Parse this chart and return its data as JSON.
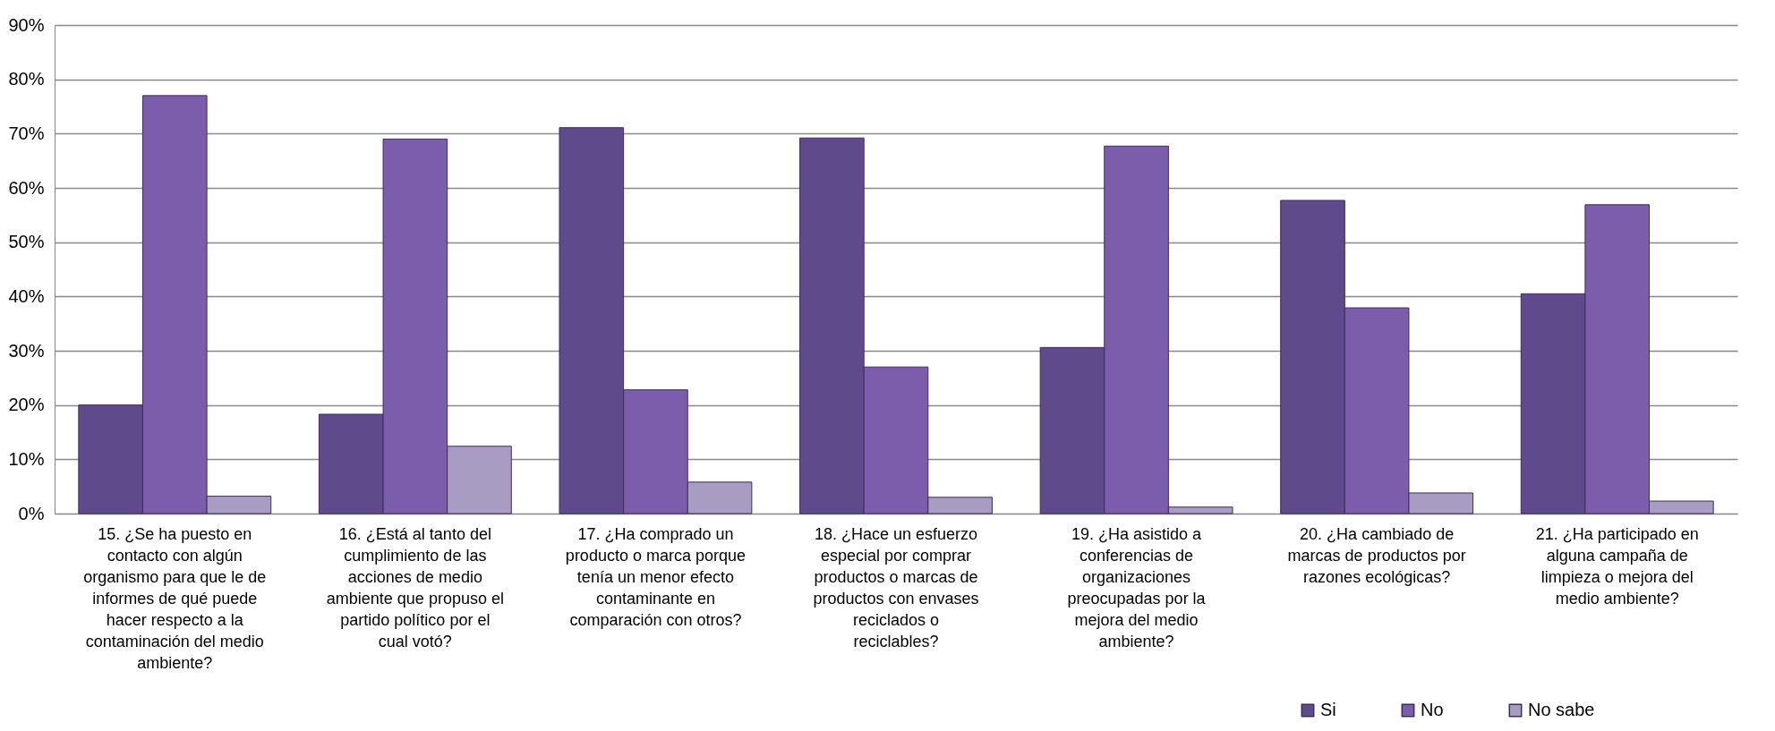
{
  "chart_data": {
    "type": "bar",
    "categories": [
      "15. ¿Se ha puesto en contacto con algún organismo para que le de informes de qué puede hacer respecto a la contaminación del medio ambiente?",
      "16. ¿Está al tanto del cumplimiento de las acciones de medio ambiente que propuso el partido político por el cual votó?",
      "17. ¿Ha comprado un producto o marca porque tenía un menor efecto contaminante en comparación con otros?",
      "18. ¿Hace un esfuerzo especial por comprar productos o marcas de productos con envases reciclados o reciclables?",
      "19. ¿Ha asistido a conferencias de organizaciones preocupadas por la mejora del medio ambiente?",
      "20. ¿Ha cambiado de marcas de productos por razones ecológicas?",
      "21. ¿Ha participado en alguna campaña de limpieza o mejora del medio ambiente?"
    ],
    "series": [
      {
        "name": "Si",
        "color": "#5f4a8b",
        "values": [
          20.0,
          18.3,
          71.1,
          69.2,
          30.6,
          57.7,
          40.5
        ]
      },
      {
        "name": "No",
        "color": "#7b5dab",
        "values": [
          77.0,
          69.0,
          22.8,
          27.0,
          67.7,
          37.9,
          56.9
        ]
      },
      {
        "name": "No sabe",
        "color": "#a99cc2",
        "values": [
          3.2,
          12.4,
          5.8,
          3.0,
          1.2,
          3.8,
          2.3
        ]
      }
    ],
    "ylim": [
      0,
      90
    ],
    "yticks": [
      {
        "value": 0,
        "label": "0%"
      },
      {
        "value": 10,
        "label": "10%"
      },
      {
        "value": 20,
        "label": "20%"
      },
      {
        "value": 30,
        "label": "30%"
      },
      {
        "value": 40,
        "label": "40%"
      },
      {
        "value": 50,
        "label": "50%"
      },
      {
        "value": 60,
        "label": "60%"
      },
      {
        "value": 70,
        "label": "70%"
      },
      {
        "value": 80,
        "label": "80%"
      },
      {
        "value": 90,
        "label": "90%"
      }
    ],
    "grid": "y",
    "legend": "bottom right"
  }
}
